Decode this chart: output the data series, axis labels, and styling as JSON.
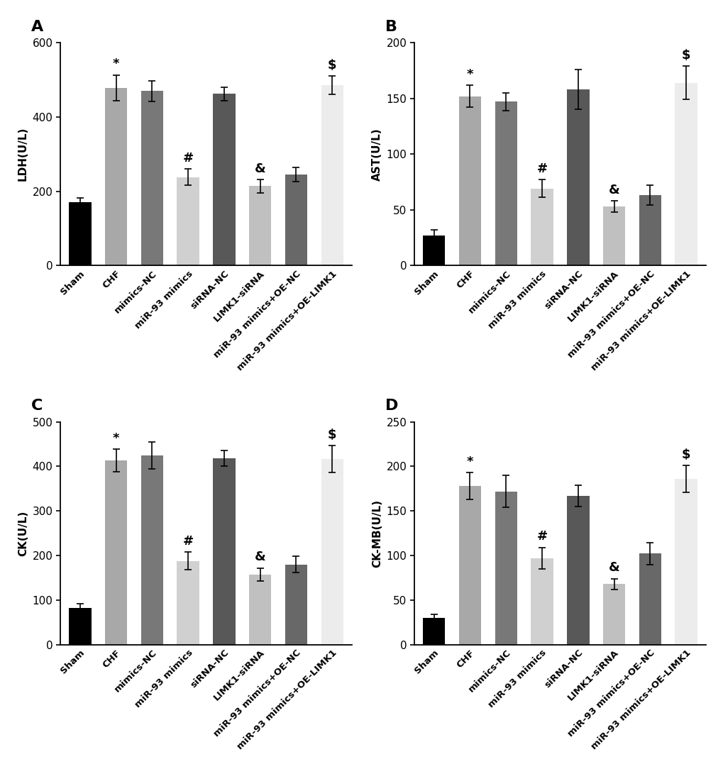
{
  "panels": [
    {
      "label": "A",
      "ylabel": "LDH(U/L)",
      "ylim": [
        0,
        600
      ],
      "yticks": [
        0,
        200,
        400,
        600
      ],
      "values": [
        170,
        478,
        470,
        238,
        462,
        214,
        245,
        485
      ],
      "errors": [
        12,
        35,
        28,
        22,
        18,
        18,
        20,
        25
      ],
      "sig_labels": [
        "",
        "*",
        "",
        "#",
        "",
        "&",
        "",
        "$"
      ]
    },
    {
      "label": "B",
      "ylabel": "AST(U/L)",
      "ylim": [
        0,
        200
      ],
      "yticks": [
        0,
        50,
        100,
        150,
        200
      ],
      "values": [
        27,
        152,
        147,
        69,
        158,
        53,
        63,
        164
      ],
      "errors": [
        5,
        10,
        8,
        8,
        18,
        5,
        9,
        15
      ],
      "sig_labels": [
        "",
        "*",
        "",
        "#",
        "",
        "&",
        "",
        "$"
      ]
    },
    {
      "label": "C",
      "ylabel": "CK(U/L)",
      "ylim": [
        0,
        500
      ],
      "yticks": [
        0,
        100,
        200,
        300,
        400,
        500
      ],
      "values": [
        82,
        413,
        425,
        188,
        418,
        157,
        180,
        417
      ],
      "errors": [
        10,
        25,
        30,
        20,
        18,
        15,
        18,
        30
      ],
      "sig_labels": [
        "",
        "*",
        "",
        "#",
        "",
        "&",
        "",
        "$"
      ]
    },
    {
      "label": "D",
      "ylabel": "CK-MB(U/L)",
      "ylim": [
        0,
        250
      ],
      "yticks": [
        0,
        50,
        100,
        150,
        200,
        250
      ],
      "values": [
        30,
        178,
        172,
        97,
        167,
        68,
        102,
        186
      ],
      "errors": [
        4,
        15,
        18,
        12,
        12,
        6,
        12,
        15
      ],
      "sig_labels": [
        "",
        "*",
        "",
        "#",
        "",
        "&",
        "",
        "$"
      ]
    }
  ],
  "categories": [
    "Sham",
    "CHF",
    "mimics-NC",
    "miR-93 mimics",
    "siRNA-NC",
    "LIMK1-siRNA",
    "miR-93 mimics+OE-NC",
    "miR-93 mimics+OE-LIMK1"
  ],
  "bar_colors": [
    "#000000",
    "#a8a8a8",
    "#787878",
    "#d0d0d0",
    "#585858",
    "#c0c0c0",
    "#686868",
    "#ececec"
  ],
  "bar_width": 0.62,
  "figure_bg": "#ffffff"
}
